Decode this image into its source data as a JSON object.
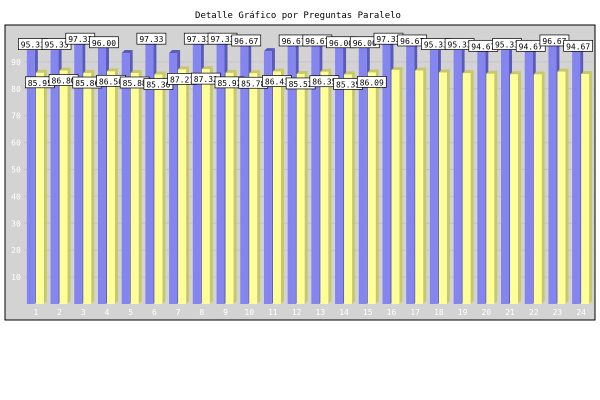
{
  "colors": {
    "background": "#ffffff",
    "plot_area": "#d3d3d3",
    "plot_border": "#000000",
    "series_a": "#8585f0",
    "series_a_side": "#5a5ab8",
    "series_b": "#ffff99",
    "series_b_side": "#c8c86a",
    "label_box": "#ffffff"
  },
  "chart_data": {
    "type": "bar",
    "title": "Detalle Gráfico por Preguntas Paralelo",
    "xlabel": "",
    "ylabel": "",
    "ylim": [
      0,
      100
    ],
    "yticks": [
      10,
      20,
      30,
      40,
      50,
      60,
      70,
      80,
      90
    ],
    "grid": true,
    "legend": "none",
    "categories": [
      "1",
      "2",
      "3",
      "4",
      "5",
      "6",
      "7",
      "8",
      "9",
      "10",
      "11",
      "12",
      "13",
      "14",
      "15",
      "16",
      "17",
      "18",
      "19",
      "20",
      "21",
      "22",
      "23",
      "24"
    ],
    "series": [
      {
        "values": [
          95.33,
          95.33,
          97.33,
          96.0,
          93.33,
          97.33,
          93.33,
          97.33,
          97.33,
          96.67,
          94.0,
          96.67,
          96.67,
          96.0,
          96.0,
          97.33,
          96.67,
          95.33,
          95.33,
          94.67,
          95.33,
          94.67,
          96.67,
          94.67
        ],
        "labels": [
          "95.33",
          "95.33",
          "97.33",
          "96.00",
          "",
          "97.33",
          "",
          "97.33",
          "97.33",
          "96.67",
          "",
          "96.67",
          "96.67",
          "96.00",
          "96.00",
          "97.33",
          "96.67",
          "95.33",
          "95.33",
          "94.67",
          "95.33",
          "94.67",
          "96.67",
          "94.67"
        ]
      },
      {
        "values": [
          85.95,
          86.8,
          85.86,
          86.5,
          85.88,
          85.3,
          87.21,
          87.32,
          85.92,
          85.78,
          86.43,
          85.52,
          86.35,
          85.35,
          86.09,
          87.0,
          86.8,
          86.07,
          85.8,
          85.6,
          85.4,
          85.37,
          86.37,
          85.5
        ],
        "labels": [
          "85.95",
          "86.80",
          "85.86",
          "86.50",
          "85.88",
          "85.30",
          "87.21",
          "87.32",
          "85.92",
          "85.78",
          "86.43",
          "85.52",
          "86.35",
          "85.35",
          "86.09",
          "",
          "",
          "",
          "",
          "",
          "",
          "",
          "",
          ""
        ]
      }
    ]
  }
}
